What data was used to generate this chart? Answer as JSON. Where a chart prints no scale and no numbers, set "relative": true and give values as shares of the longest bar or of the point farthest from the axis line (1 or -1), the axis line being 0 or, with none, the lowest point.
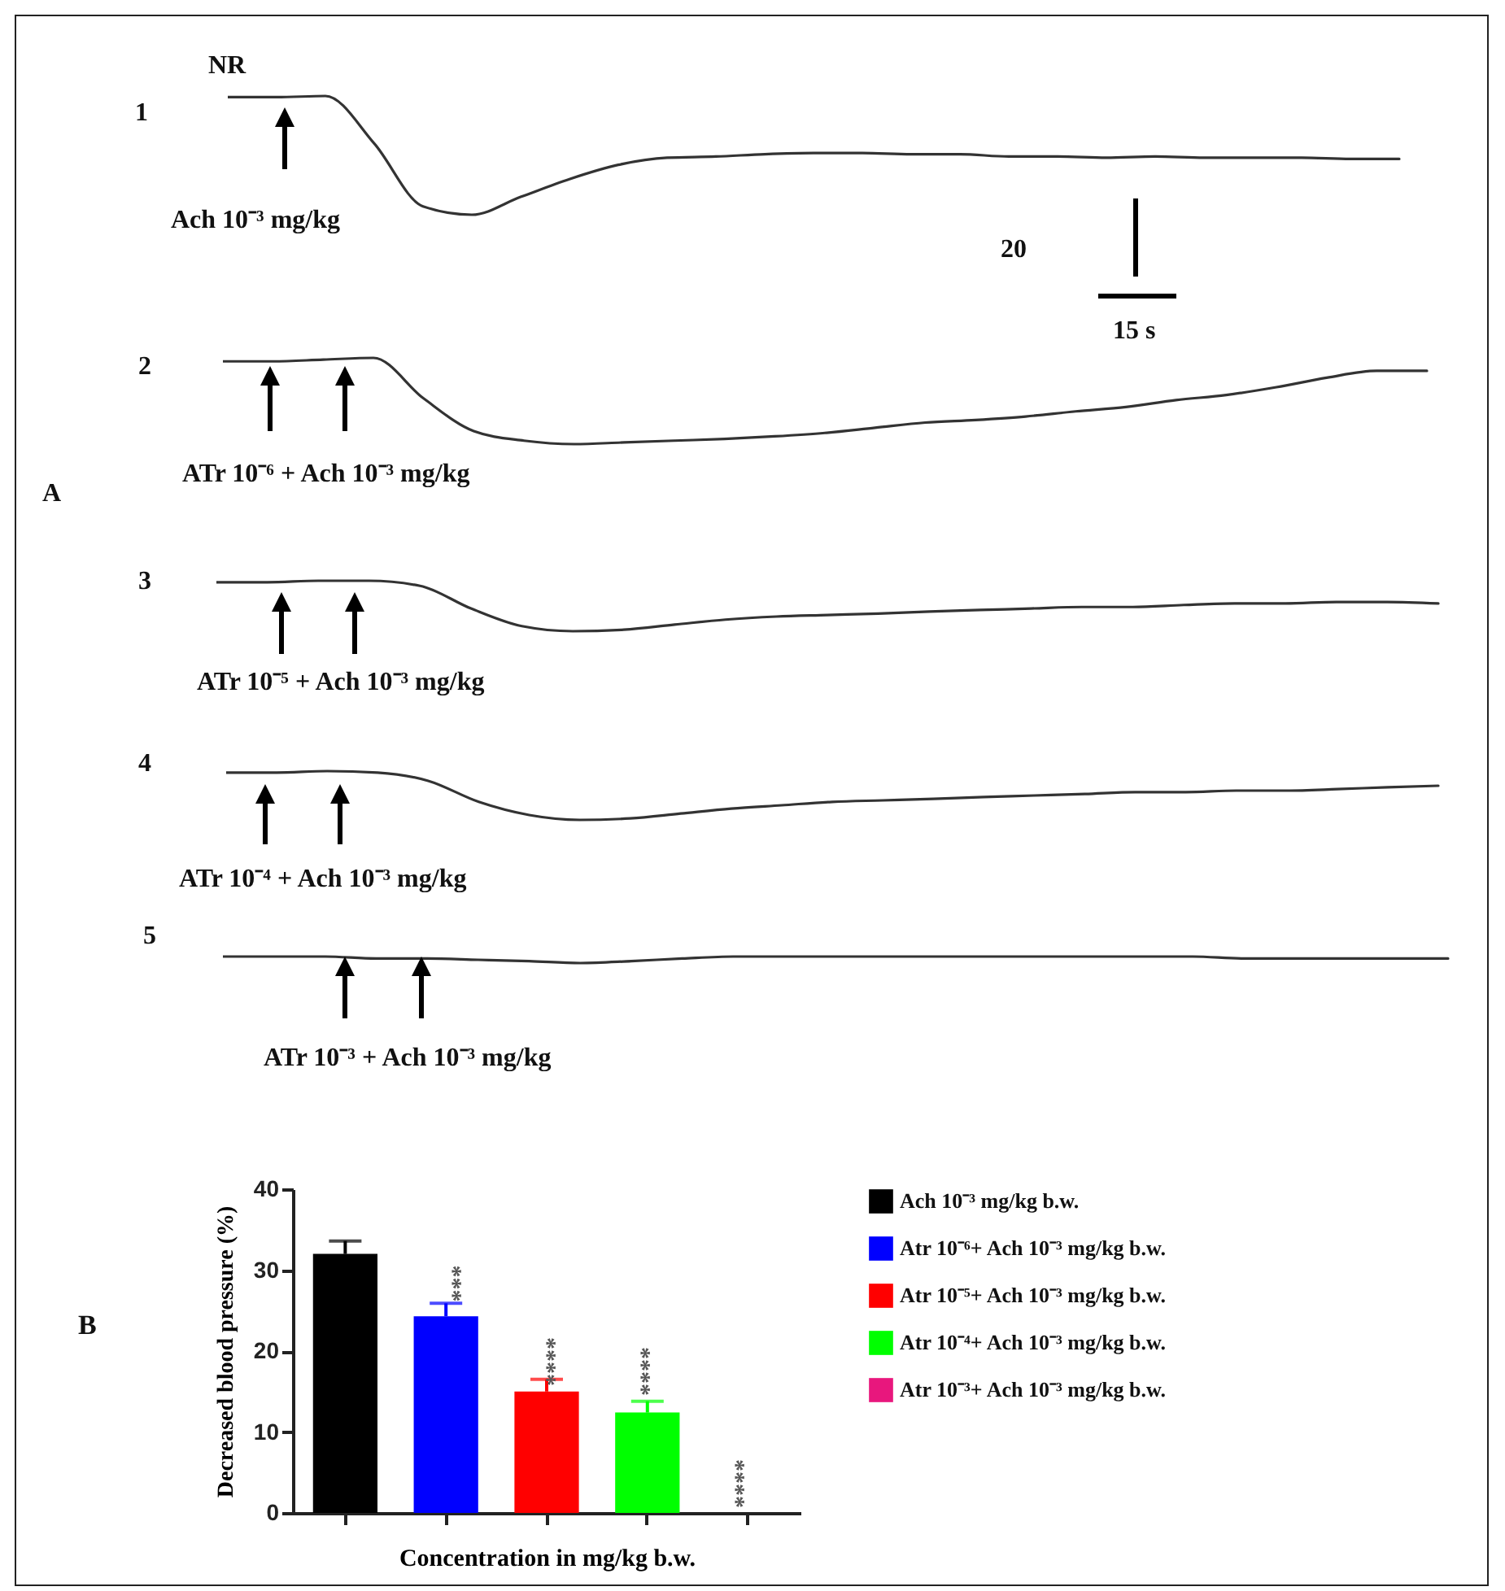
{
  "chart_data": [
    {
      "type": "line",
      "relative": true,
      "categories": [
        null,
        null,
        null,
        null,
        null,
        null,
        null,
        null,
        null,
        null,
        null,
        null,
        null,
        null,
        null,
        null,
        null,
        null,
        null,
        null,
        null,
        null,
        null,
        null,
        null
      ],
      "series": [
        {
          "color": "#333333",
          "values": [
            0.99,
            0.99,
            1,
            0.6,
            0.07,
            0,
            0.15,
            0.3,
            0.42,
            0.48,
            0.49,
            0.51,
            0.52,
            0.52,
            0.51,
            0.51,
            0.49,
            0.49,
            0.48,
            0.49,
            0.48,
            0.48,
            0.48,
            0.47,
            0.47
          ]
        }
      ],
      "annotations": [
        "1",
        "NR",
        "Ach 10⁻³ mg/kg",
        "20",
        "15 s",
        "A"
      ]
    },
    {
      "type": "line",
      "relative": true,
      "categories": [
        null,
        null,
        null,
        null,
        null,
        null,
        null,
        null,
        null,
        null,
        null,
        null,
        null,
        null,
        null,
        null,
        null,
        null,
        null,
        null,
        null,
        null,
        null,
        null,
        null
      ],
      "series": [
        {
          "color": "#333333",
          "values": [
            0.96,
            0.96,
            0.98,
            1,
            0.53,
            0.15,
            0.04,
            0,
            0.02,
            0.04,
            0.06,
            0.09,
            0.13,
            0.19,
            0.25,
            0.28,
            0.32,
            0.38,
            0.43,
            0.51,
            0.57,
            0.66,
            0.77,
            0.85,
            0.85
          ]
        }
      ],
      "annotations": [
        "2",
        "ATr 10⁻⁶ + Ach 10⁻³ mg/kg"
      ]
    },
    {
      "type": "line",
      "relative": true,
      "categories": [
        null,
        null,
        null,
        null,
        null,
        null,
        null,
        null,
        null,
        null,
        null,
        null,
        null,
        null,
        null,
        null,
        null,
        null,
        null,
        null,
        null,
        null,
        null,
        null,
        null
      ],
      "series": [
        {
          "color": "#333333",
          "values": [
            0.97,
            0.97,
            1,
            1,
            0.9,
            0.45,
            0.1,
            0,
            0.03,
            0.13,
            0.23,
            0.29,
            0.32,
            0.35,
            0.39,
            0.42,
            0.45,
            0.48,
            0.48,
            0.52,
            0.55,
            0.55,
            0.58,
            0.58,
            0.55
          ]
        }
      ],
      "annotations": [
        "3",
        "ATr 10⁻⁵ + Ach 10⁻³ mg/kg"
      ]
    },
    {
      "type": "line",
      "relative": true,
      "categories": [
        null,
        null,
        null,
        null,
        null,
        null,
        null,
        null,
        null,
        null,
        null,
        null,
        null,
        null,
        null,
        null,
        null,
        null,
        null,
        null,
        null,
        null,
        null,
        null,
        null
      ],
      "series": [
        {
          "color": "#333333",
          "values": [
            0.97,
            0.97,
            1,
            0.97,
            0.8,
            0.37,
            0.1,
            0,
            0.03,
            0.13,
            0.23,
            0.3,
            0.37,
            0.4,
            0.43,
            0.47,
            0.5,
            0.53,
            0.57,
            0.57,
            0.6,
            0.6,
            0.63,
            0.67,
            0.7
          ]
        }
      ],
      "annotations": [
        "4",
        "ATr 10⁻⁴ + Ach 10⁻³ mg/kg"
      ]
    },
    {
      "type": "line",
      "relative": true,
      "categories": [
        null,
        null,
        null,
        null,
        null,
        null,
        null,
        null,
        null,
        null,
        null,
        null,
        null,
        null,
        null,
        null,
        null,
        null,
        null,
        null,
        null,
        null,
        null,
        null,
        null
      ],
      "series": [
        {
          "color": "#333333",
          "values": [
            1,
            1,
            1,
            0.7,
            0.7,
            0.5,
            0.3,
            0,
            0.3,
            0.7,
            1,
            1,
            1,
            1,
            1,
            1,
            1,
            1,
            1,
            1,
            0.7,
            0.7,
            0.7,
            0.7,
            0.7
          ]
        }
      ],
      "annotations": [
        "5",
        "ATr 10⁻³ + Ach 10⁻³ mg/kg"
      ]
    },
    {
      "type": "bar",
      "categories": [
        null,
        null,
        null,
        null,
        null
      ],
      "xlabel": "Concentration in mg/kg b.w.",
      "ylabel": "Decreased blood pressure (%)",
      "ylim": [
        0,
        40
      ],
      "yticks": [
        0,
        10,
        20,
        30,
        40
      ],
      "tick_labels": "y",
      "legend": "right",
      "series": [
        {
          "name": "Ach 10⁻³ mg/kg  b.w.",
          "color": "#000000",
          "values": [
            32,
            null,
            null,
            null,
            null
          ],
          "errors": [
            [
              32,
              33.6
            ],
            null,
            null,
            null,
            null
          ]
        },
        {
          "name": "Atr 10⁻⁶+ Ach 10⁻³ mg/kg b.w.",
          "color": "#0000ff",
          "values": [
            null,
            24.3,
            null,
            null,
            null
          ],
          "errors": [
            null,
            [
              24.3,
              25.9
            ],
            null,
            null,
            null
          ]
        },
        {
          "name": "Atr 10⁻⁵+ Ach 10⁻³ mg/kg b.w.",
          "color": "#ff0000",
          "values": [
            null,
            null,
            15,
            null,
            null
          ],
          "errors": [
            null,
            null,
            [
              15,
              16.5
            ],
            null,
            null
          ]
        },
        {
          "name": "Atr 10⁻⁴+ Ach 10⁻³ mg/kg b.w.",
          "color": "#00ff00",
          "values": [
            null,
            null,
            null,
            12.4,
            null
          ],
          "errors": [
            null,
            null,
            null,
            [
              12.4,
              13.8
            ],
            null
          ]
        },
        {
          "name": "Atr 10⁻³+ Ach 10⁻³ mg/kg b.w.",
          "color": "#e8177d",
          "values": [
            null,
            null,
            null,
            null,
            0
          ]
        }
      ],
      "annotations": [
        "B",
        "***",
        "****",
        "****",
        "****"
      ]
    }
  ]
}
